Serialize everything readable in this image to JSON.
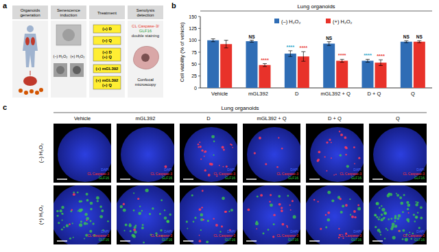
{
  "chart_data": {
    "type": "bar",
    "title": "Lung organoids",
    "y_label": "Cell viability (% of vehicle)",
    "categories": [
      "Vehicle",
      "mGL392",
      "D",
      "mGL392 + Q",
      "D + Q",
      "Q"
    ],
    "series": [
      {
        "name": "(–) H₂O₂",
        "color": "#2f6db5",
        "values": [
          100,
          98,
          72,
          93,
          57,
          97
        ],
        "errors": [
          3,
          2,
          6,
          4,
          3,
          2
        ],
        "significance": [
          null,
          "NS",
          "****",
          "NS",
          "****",
          "NS"
        ]
      },
      {
        "name": "(+) H₂O₂",
        "color": "#e8322a",
        "values": [
          92,
          48,
          66,
          57,
          53,
          97
        ],
        "errors": [
          8,
          3,
          10,
          3,
          6,
          2
        ],
        "significance": [
          null,
          "****",
          "****",
          "****",
          "****",
          "NS"
        ]
      }
    ],
    "ylim": [
      0,
      150
    ],
    "yticks": [
      0,
      25,
      50,
      75,
      100,
      125,
      150
    ],
    "legend": "top"
  },
  "figure": {
    "panel_labels": [
      "a",
      "b",
      "c"
    ],
    "panel_a": {
      "steps": [
        {
          "title": [
            "Organoids",
            "generation"
          ]
        },
        {
          "title": [
            "Senescence",
            "induction"
          ],
          "labels": [
            "(–) H₂O₂",
            "(+) H₂O₂"
          ]
        },
        {
          "title": [
            "Treatment"
          ],
          "boxes": [
            [
              "(+) D"
            ],
            [
              "(+) Q"
            ],
            [
              "(+) D",
              "(+) Q"
            ],
            [
              "(+) mGL392"
            ],
            [
              "(+) mGL392",
              "(+) Q"
            ]
          ]
        },
        {
          "title": [
            "Senolysis",
            "detection"
          ],
          "stain": [
            "CL Caspase-3/",
            "GLF16",
            "double staining"
          ],
          "method": [
            "Confocal",
            "microscopy"
          ]
        }
      ]
    },
    "panel_c": {
      "title": "Lung organoids",
      "columns": [
        "Vehicle",
        "mGL392",
        "D",
        "mGL392 + Q",
        "D + Q",
        "Q"
      ],
      "rows": [
        "(–) H₂O₂",
        "(+) H₂O₂"
      ],
      "stain_labels": [
        "DAPI",
        "CL Caspase-3",
        "GLF16"
      ]
    }
  }
}
